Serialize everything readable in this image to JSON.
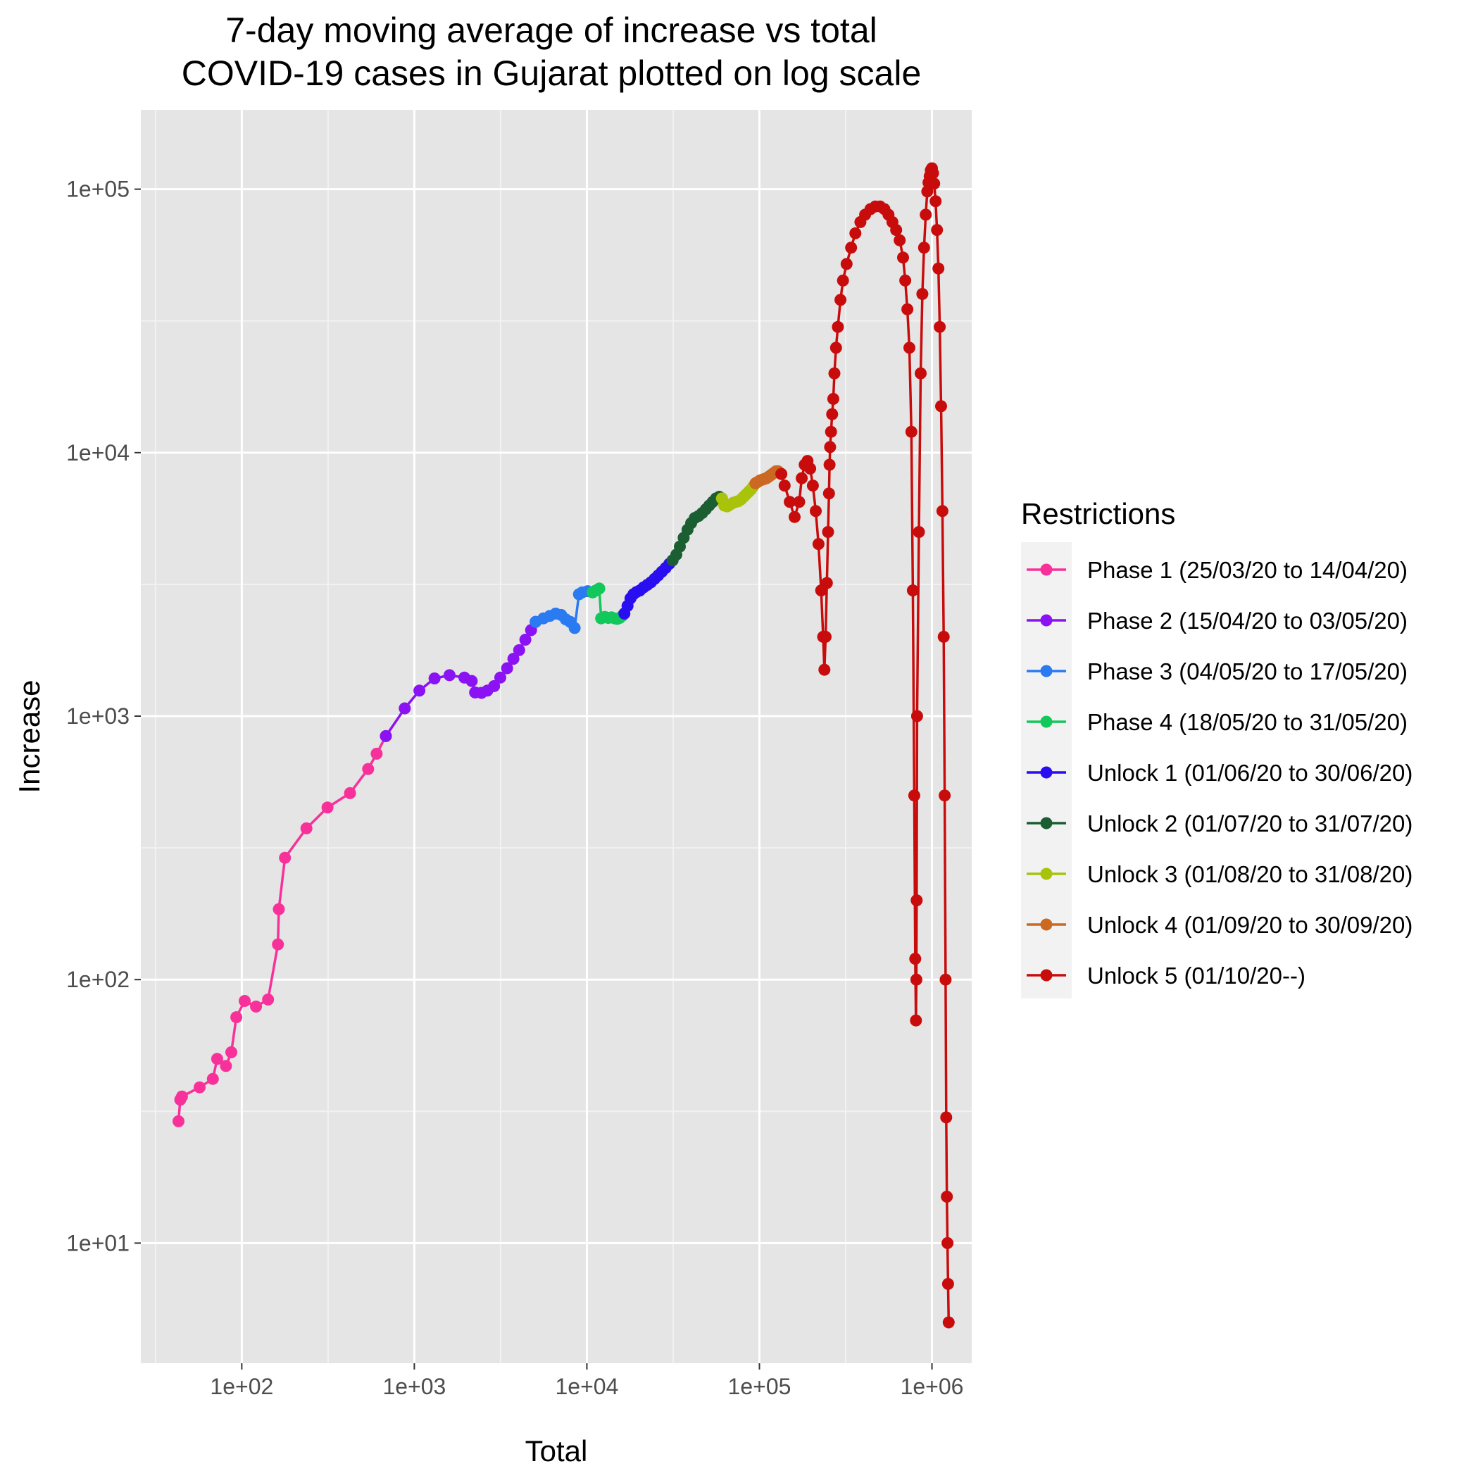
{
  "chart_data": {
    "type": "line",
    "title": [
      "7-day moving average of increase vs total",
      "COVID-19 cases in Gujarat plotted on log scale"
    ],
    "xlabel": "Total",
    "ylabel": "Increase",
    "x_scale": "log10",
    "y_scale": "log10",
    "xlim": [
      26,
      1700000
    ],
    "ylim": [
      3.5,
      200000
    ],
    "x_ticks": [
      100,
      1000,
      10000,
      100000,
      1000000
    ],
    "x_tick_labels": [
      "1e+02",
      "1e+03",
      "1e+04",
      "1e+05",
      "1e+06"
    ],
    "y_ticks": [
      10,
      100,
      1000,
      10000,
      100000
    ],
    "y_tick_labels": [
      "1e+01",
      "1e+02",
      "1e+03",
      "1e+04",
      "1e+05"
    ],
    "grid": true,
    "panel_background": "#e5e5e5",
    "legend": {
      "title": "Restrictions",
      "position": "right"
    },
    "series": [
      {
        "name": "Phase 1 (25/03/20 to 14/04/20)",
        "color": "#f8319a",
        "x": [
          43,
          44,
          45,
          57,
          68,
          72,
          81,
          87,
          93,
          104,
          121,
          142,
          162,
          164,
          178,
          237,
          314,
          424,
          540,
          605,
          684
        ],
        "y": [
          29,
          35,
          36,
          39,
          42,
          50,
          47,
          53,
          72,
          83,
          79,
          84,
          136,
          185,
          290,
          375,
          450,
          510,
          630,
          720,
          840
        ]
      },
      {
        "name": "Phase 2 (15/04/20 to 03/05/20)",
        "color": "#8b12f2",
        "x": [
          684,
          880,
          1070,
          1310,
          1600,
          1950,
          2150,
          2250,
          2450,
          2650,
          2900,
          3150,
          3450,
          3750,
          4050,
          4400,
          4750,
          5050
        ],
        "y": [
          840,
          1070,
          1250,
          1390,
          1430,
          1400,
          1360,
          1230,
          1225,
          1250,
          1300,
          1400,
          1520,
          1650,
          1780,
          1950,
          2120,
          2280
        ]
      },
      {
        "name": "Phase 3 (04/05/20 to 17/05/20)",
        "color": "#2a7af2",
        "x": [
          5050,
          5600,
          6100,
          6600,
          7100,
          7550,
          8000,
          8500,
          9000,
          9400,
          10100,
          10800
        ],
        "y": [
          2280,
          2350,
          2400,
          2450,
          2420,
          2330,
          2280,
          2160,
          2900,
          2950,
          2980,
          2950
        ]
      },
      {
        "name": "Phase 4 (18/05/20 to 31/05/20)",
        "color": "#12c85a",
        "x": [
          10800,
          11300,
          11800,
          12100,
          12700,
          13300,
          13900,
          14500,
          15000,
          15500,
          16000,
          16500
        ],
        "y": [
          2950,
          3000,
          3050,
          2350,
          2380,
          2360,
          2370,
          2350,
          2340,
          2360,
          2400,
          2450
        ]
      },
      {
        "name": "Unlock 1 (01/06/20 to 30/06/20)",
        "color": "#2a0ef2",
        "x": [
          16500,
          17200,
          17900,
          18600,
          19400,
          20300,
          21300,
          22400,
          23500,
          24700,
          25900,
          27200,
          28600,
          30000,
          31400
        ],
        "y": [
          2450,
          2620,
          2800,
          2900,
          2960,
          3000,
          3080,
          3150,
          3220,
          3320,
          3420,
          3530,
          3650,
          3780,
          3900
        ]
      },
      {
        "name": "Unlock 2 (01/07/20 to 31/07/20)",
        "color": "#1b5e32",
        "x": [
          31400,
          33000,
          34600,
          36400,
          38300,
          40200,
          42200,
          44400,
          46600,
          48900,
          51200,
          53600,
          56000,
          58500,
          60600
        ],
        "y": [
          3900,
          4100,
          4400,
          4750,
          5100,
          5400,
          5650,
          5750,
          5900,
          6100,
          6300,
          6500,
          6700,
          6800,
          6700
        ]
      },
      {
        "name": "Unlock 3 (01/08/20 to 31/08/20)",
        "color": "#a8c30a",
        "x": [
          60600,
          62500,
          65000,
          67600,
          70300,
          73000,
          75700,
          78400,
          81100,
          83800,
          86600,
          89400,
          92200,
          94900
        ],
        "y": [
          6700,
          6300,
          6250,
          6350,
          6450,
          6500,
          6550,
          6650,
          6800,
          6950,
          7100,
          7250,
          7450,
          7650
        ]
      },
      {
        "name": "Unlock 4 (01/09/20 to 30/09/20)",
        "color": "#cb6822",
        "x": [
          94900,
          98000,
          101000,
          104000,
          107000,
          110000,
          113000,
          116000,
          119000,
          122000,
          125000,
          128000,
          131000,
          134000
        ],
        "y": [
          7650,
          7750,
          7850,
          7900,
          7950,
          8000,
          8100,
          8200,
          8300,
          8400,
          8500,
          8500,
          8400,
          8300
        ]
      },
      {
        "name": "Unlock 5 (01/10/20--)",
        "color": "#c80c0c",
        "x": [
          134000,
          140000,
          150000,
          160000,
          170000,
          176000,
          183000,
          190000,
          197000,
          204000,
          212000,
          220000,
          228000,
          234000,
          238000,
          242000,
          246000,
          250000,
          253000,
          255000,
          257000,
          260000,
          264000,
          268000,
          272000,
          278000,
          285000,
          295000,
          305000,
          320000,
          340000,
          360000,
          385000,
          410000,
          440000,
          470000,
          500000,
          530000,
          560000,
          590000,
          620000,
          650000,
          680000,
          700000,
          720000,
          740000,
          760000,
          775000,
          790000,
          800000,
          808000,
          812000,
          815000,
          820000,
          840000,
          860000,
          880000,
          900000,
          920000,
          940000,
          955000,
          970000,
          985000,
          1000000,
          1015000,
          1030000,
          1050000,
          1070000,
          1090000,
          1110000,
          1130000,
          1150000,
          1170000,
          1185000,
          1200000,
          1210000,
          1220000,
          1230000,
          1240000,
          1250000
        ],
        "y": [
          8300,
          7500,
          6500,
          5700,
          6500,
          8000,
          9000,
          9300,
          8700,
          7500,
          6000,
          4500,
          3000,
          2000,
          1500,
          2000,
          3200,
          5000,
          7000,
          9000,
          10500,
          12000,
          14000,
          16000,
          20000,
          25000,
          30000,
          38000,
          45000,
          52000,
          60000,
          68000,
          75000,
          80000,
          84000,
          86000,
          86000,
          84000,
          80000,
          75000,
          70000,
          64000,
          55000,
          45000,
          35000,
          25000,
          12000,
          3000,
          500,
          120,
          70,
          100,
          200,
          1000,
          5000,
          20000,
          40000,
          60000,
          80000,
          98000,
          106000,
          112000,
          118000,
          120000,
          115000,
          105000,
          90000,
          70000,
          50000,
          30000,
          15000,
          6000,
          2000,
          500,
          100,
          30,
          15,
          10,
          7,
          5
        ]
      }
    ]
  }
}
